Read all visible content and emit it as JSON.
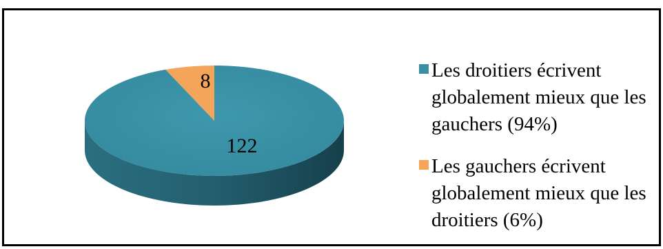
{
  "chart_data": {
    "type": "pie",
    "style": "3d",
    "title": "",
    "legend_position": "right",
    "slices": [
      {
        "label": "Les droitiers écrivent globalement mieux que les gauchers (94%)",
        "value": 122,
        "percent": 94,
        "color": "#3a8fa3"
      },
      {
        "label": "Les gauchers écrivent globalement mieux que les droitiers (6%)",
        "value": 8,
        "percent": 6,
        "color": "#f4a55a"
      }
    ]
  }
}
